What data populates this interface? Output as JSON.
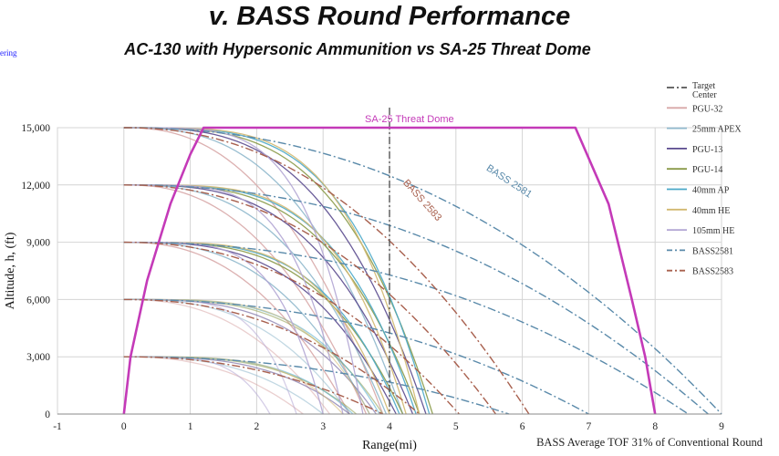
{
  "slide": {
    "title": "v. BASS Round Performance",
    "subtitle": "AC-130 with Hypersonic Ammunition vs SA-25 Threat Dome",
    "corner_text": "ering",
    "footnote": "BASS Average TOF 31% of Conventional Round"
  },
  "chart_data": {
    "type": "line",
    "xlabel": "Range(mi)",
    "ylabel": "Altitude, h, (ft)",
    "xlim": [
      -1,
      9
    ],
    "ylim": [
      0,
      15000
    ],
    "xticks": [
      "-1",
      "0",
      "1",
      "2",
      "3",
      "4",
      "5",
      "6",
      "7",
      "8",
      "9"
    ],
    "yticks": [
      "0",
      "3,000",
      "6,000",
      "9,000",
      "12,000",
      "15,000"
    ],
    "grid": true,
    "legend_position": "right",
    "colors": {
      "dome": "#c43ab8",
      "target": "#555555",
      "PGU-32": "#d8a8a8",
      "25mm APEX": "#8fb8cc",
      "PGU-13": "#5a4a8e",
      "PGU-14": "#8a9a48",
      "40mm AP": "#4aa8c8",
      "40mm HE": "#d2b870",
      "105mm HE": "#b2a6d4",
      "BASS2581": "#5a8aaa",
      "BASS2583": "#a8604e"
    },
    "legend": [
      "Target Center",
      "PGU-32",
      "25mm APEX",
      "PGU-13",
      "PGU-14",
      "40mm AP",
      "40mm HE",
      "105mm HE",
      "BASS2581",
      "BASS2583"
    ],
    "annotations": {
      "dome": "SA-25 Threat Dome",
      "bass2581": "BASS 2581",
      "bass2583": "BASS 2583"
    },
    "threat_dome": {
      "name": "SA-25 Threat Dome",
      "points": [
        [
          0,
          0
        ],
        [
          0.1,
          3000
        ],
        [
          0.35,
          7000
        ],
        [
          0.7,
          11000
        ],
        [
          1.0,
          13600
        ],
        [
          1.2,
          15000
        ],
        [
          6.8,
          15000
        ],
        [
          7.3,
          11000
        ],
        [
          7.65,
          6000
        ],
        [
          7.85,
          3000
        ],
        [
          8.0,
          0
        ]
      ]
    },
    "target_center": {
      "name": "Target Center",
      "x": 4.0
    },
    "launch_altitudes": [
      15000,
      12000,
      9000,
      6000,
      3000
    ],
    "conventional_rounds": [
      {
        "name": "PGU-32",
        "impact_range": [
          3.9,
          3.65,
          3.4,
          3.1,
          2.7
        ]
      },
      {
        "name": "25mm APEX",
        "impact_range": [
          4.2,
          3.95,
          3.7,
          3.4,
          3.0
        ]
      },
      {
        "name": "PGU-13",
        "impact_range": [
          4.55,
          4.35,
          4.1,
          3.8,
          3.4
        ]
      },
      {
        "name": "PGU-14",
        "impact_range": [
          4.65,
          4.45,
          4.2,
          3.9,
          3.5
        ]
      },
      {
        "name": "40mm AP",
        "impact_range": [
          4.6,
          4.4,
          4.15,
          3.85,
          3.45
        ]
      },
      {
        "name": "40mm HE",
        "impact_range": [
          4.45,
          4.25,
          4.0,
          3.7,
          3.3
        ]
      },
      {
        "name": "105mm HE",
        "impact_range": [
          3.6,
          3.3,
          3.0,
          2.6,
          2.2
        ]
      }
    ],
    "bass_rounds": [
      {
        "name": "BASS2581",
        "impact_range": [
          9.0,
          8.8,
          8.5,
          7.0,
          5.8
        ]
      },
      {
        "name": "BASS2583",
        "impact_range": [
          6.1,
          5.6,
          5.05,
          4.45,
          3.9
        ]
      }
    ]
  }
}
